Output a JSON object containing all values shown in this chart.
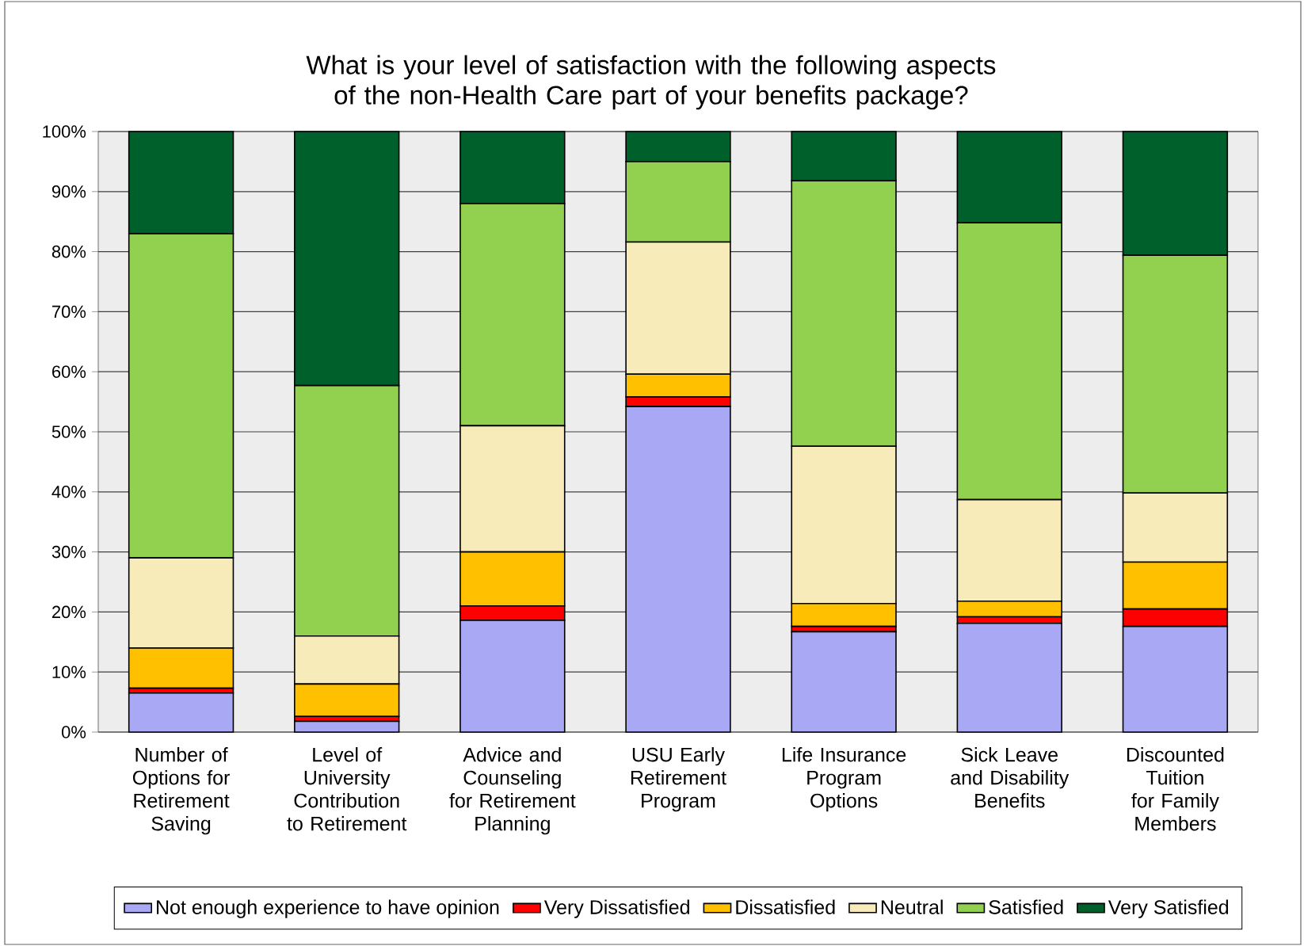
{
  "chart_data": {
    "type": "bar",
    "stacked": true,
    "title": "What is your level of satisfaction with the following aspects of the non-Health Care part of your benefits package?",
    "categories": [
      "Number of Options for Retirement Saving",
      "Level of University Contribution to Retirement",
      "Advice and Counseling for Retirement Planning",
      "USU Early Retirement Program",
      "Life Insurance Program Options",
      "Sick Leave and Disability Benefits",
      "Discounted Tuition for Family Members"
    ],
    "series": [
      {
        "name": "Not enough experience to have opinion",
        "color": "#a8a8f4",
        "values": [
          6.5,
          1.8,
          18.6,
          54.2,
          16.7,
          18.1,
          17.6
        ]
      },
      {
        "name": "Very Dissatisfied",
        "color": "#ff0000",
        "values": [
          0.8,
          0.8,
          2.4,
          1.6,
          0.9,
          1.1,
          2.9
        ]
      },
      {
        "name": "Dissatisfied",
        "color": "#ffc000",
        "values": [
          6.7,
          5.4,
          9,
          3.8,
          3.8,
          2.6,
          7.8
        ]
      },
      {
        "name": "Neutral",
        "color": "#f7ebb9",
        "values": [
          15,
          8,
          21,
          22,
          26.2,
          16.9,
          11.5
        ]
      },
      {
        "name": "Satisfied",
        "color": "#92d050",
        "values": [
          54,
          41.7,
          37,
          13.4,
          44.2,
          46.1,
          39.6
        ]
      },
      {
        "name": "Very Satisfied",
        "color": "#00602b",
        "values": [
          17,
          42.3,
          12,
          5,
          8.2,
          15.2,
          20.6
        ]
      }
    ],
    "ylim": [
      0,
      100
    ],
    "yticks": [
      {
        "value": 0,
        "label": "0%"
      },
      {
        "value": 10,
        "label": "10%"
      },
      {
        "value": 20,
        "label": "20%"
      },
      {
        "value": 30,
        "label": "30%"
      },
      {
        "value": 40,
        "label": "40%"
      },
      {
        "value": 50,
        "label": "50%"
      },
      {
        "value": 60,
        "label": "60%"
      },
      {
        "value": 70,
        "label": "70%"
      },
      {
        "value": 80,
        "label": "80%"
      },
      {
        "value": 90,
        "label": "90%"
      },
      {
        "value": 100,
        "label": "100%"
      }
    ],
    "grid": "y",
    "legend": "bottom"
  }
}
